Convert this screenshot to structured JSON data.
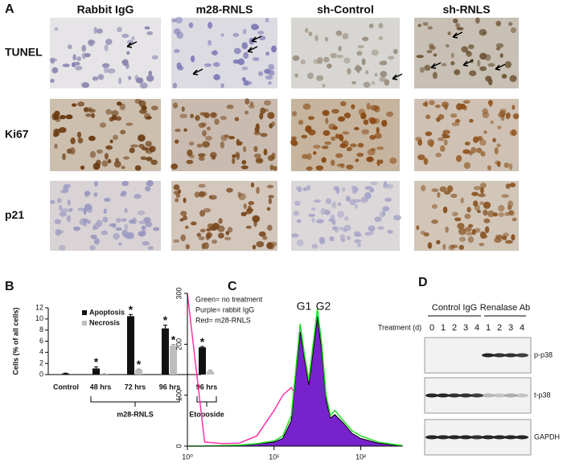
{
  "panel_a": {
    "label": "A",
    "columns": [
      "Rabbit IgG",
      "m28-RNLS",
      "sh-Control",
      "sh-RNLS"
    ],
    "rows": [
      "TUNEL",
      "Ki67",
      "p21"
    ]
  },
  "chart_data": [
    {
      "type": "bar",
      "label": "B",
      "ylabel": "Cells (% of all cells)",
      "categories": [
        "Control",
        "48 hrs",
        "72 hrs",
        "96 hrs",
        "96 hrs"
      ],
      "groups": [
        {
          "name": "m28-RNLS",
          "from": 1,
          "to": 3
        },
        {
          "name": "Etoposide",
          "from": 4,
          "to": 4
        }
      ],
      "series": [
        {
          "name": "Apoptosis",
          "color": "#111111",
          "values": [
            0.2,
            1.1,
            10.5,
            8.3,
            4.9
          ],
          "errors": [
            0.05,
            0.3,
            0.3,
            0.6,
            0.15
          ],
          "significant": [
            false,
            true,
            true,
            true,
            true
          ]
        },
        {
          "name": "Necrosis",
          "color": "#bdbdbd",
          "values": [
            null,
            0.1,
            0.9,
            5.2,
            0.6
          ],
          "errors": [
            null,
            0.05,
            0.1,
            0.2,
            0.2
          ],
          "significant": [
            false,
            false,
            true,
            true,
            false
          ]
        }
      ],
      "significance_mark": "*",
      "ylim": [
        0,
        12
      ],
      "yticks": [
        0,
        2,
        4,
        6,
        8,
        10,
        12
      ],
      "legend": "upper left"
    },
    {
      "type": "line",
      "label": "C",
      "xscale": "log",
      "xlim": [
        1,
        300
      ],
      "xticks": [
        {
          "value": 1,
          "label": "10⁰"
        },
        {
          "value": 10,
          "label": "10¹"
        },
        {
          "value": 100,
          "label": "10²"
        }
      ],
      "ylim": [
        0,
        300
      ],
      "yticks": [
        0,
        100,
        200,
        300
      ],
      "annotations": [
        "Green= no treatment",
        "Purple= rabbit IgG",
        "Red= m28-RNLS"
      ],
      "peaks": [
        "G1",
        "G2"
      ],
      "x": [
        1,
        1.58,
        2.51,
        3.98,
        6.31,
        10,
        12.6,
        15.8,
        17.8,
        20,
        22.4,
        25.1,
        28.2,
        31.6,
        35.5,
        39.8,
        44.7,
        50.1,
        63.1,
        79.4,
        100,
        158,
        251,
        300
      ],
      "series": [
        {
          "name": "m28-RNLS",
          "color": "#ff33aa",
          "values": [
            300,
            8,
            5,
            6,
            20,
            70,
            100,
            115,
            100,
            90,
            60,
            55,
            45,
            40,
            35,
            30,
            25,
            20,
            12,
            6,
            4,
            2,
            1,
            1
          ]
        },
        {
          "name": "rabbit IgG",
          "color": "#7722cc",
          "fill": true,
          "values": [
            0,
            0,
            1,
            2,
            4,
            8,
            15,
            50,
            140,
            225,
            170,
            120,
            185,
            255,
            185,
            90,
            55,
            62,
            45,
            25,
            15,
            6,
            2,
            1
          ]
        },
        {
          "name": "no treatment",
          "color": "#22dd22",
          "values": [
            0,
            0,
            1,
            2,
            5,
            10,
            20,
            60,
            150,
            240,
            180,
            130,
            200,
            270,
            200,
            100,
            60,
            70,
            50,
            30,
            20,
            8,
            3,
            1
          ]
        }
      ]
    }
  ],
  "panel_d": {
    "label": "D",
    "groups": [
      "Control IgG",
      "Renalase Ab"
    ],
    "axis_label": "Treatment (d)",
    "lanes": [
      "0",
      "1",
      "2",
      "3",
      "4",
      "1",
      "2",
      "3",
      "4"
    ],
    "bands": [
      "p-p38",
      "t-p38",
      "GAPDH"
    ]
  }
}
